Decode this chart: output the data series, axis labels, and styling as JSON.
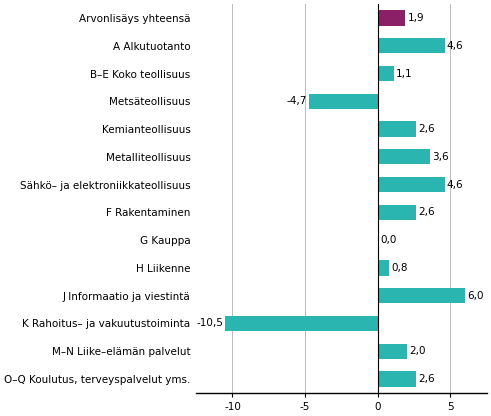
{
  "categories": [
    "Arvonlisäys yhteensä",
    "A Alkutuotanto",
    "B–E Koko teollisuus",
    "Metsäteollisuus",
    "Kemianteollisuus",
    "Metalliteollisuus",
    "Sähkö– ja elektroniikkateollisuus",
    "F Rakentaminen",
    "G Kauppa",
    "H Liikenne",
    "J Informaatio ja viestintä",
    "K Rahoitus– ja vakuutustoiminta",
    "M–N Liike–elämän palvelut",
    "O–Q Koulutus, terveyspalvelut yms."
  ],
  "values": [
    1.9,
    4.6,
    1.1,
    -4.7,
    2.6,
    3.6,
    4.6,
    2.6,
    0.0,
    0.8,
    6.0,
    -10.5,
    2.0,
    2.6
  ],
  "bar_colors": [
    "#8b2067",
    "#2ab5b0",
    "#2ab5b0",
    "#2ab5b0",
    "#2ab5b0",
    "#2ab5b0",
    "#2ab5b0",
    "#2ab5b0",
    "#2ab5b0",
    "#2ab5b0",
    "#2ab5b0",
    "#2ab5b0",
    "#2ab5b0",
    "#2ab5b0"
  ],
  "xlim": [
    -12.5,
    7.5
  ],
  "xticks": [
    -10,
    -5,
    0,
    5
  ],
  "value_fontsize": 7.5,
  "label_fontsize": 7.5,
  "background_color": "#ffffff",
  "grid_color": "#bbbbbb"
}
